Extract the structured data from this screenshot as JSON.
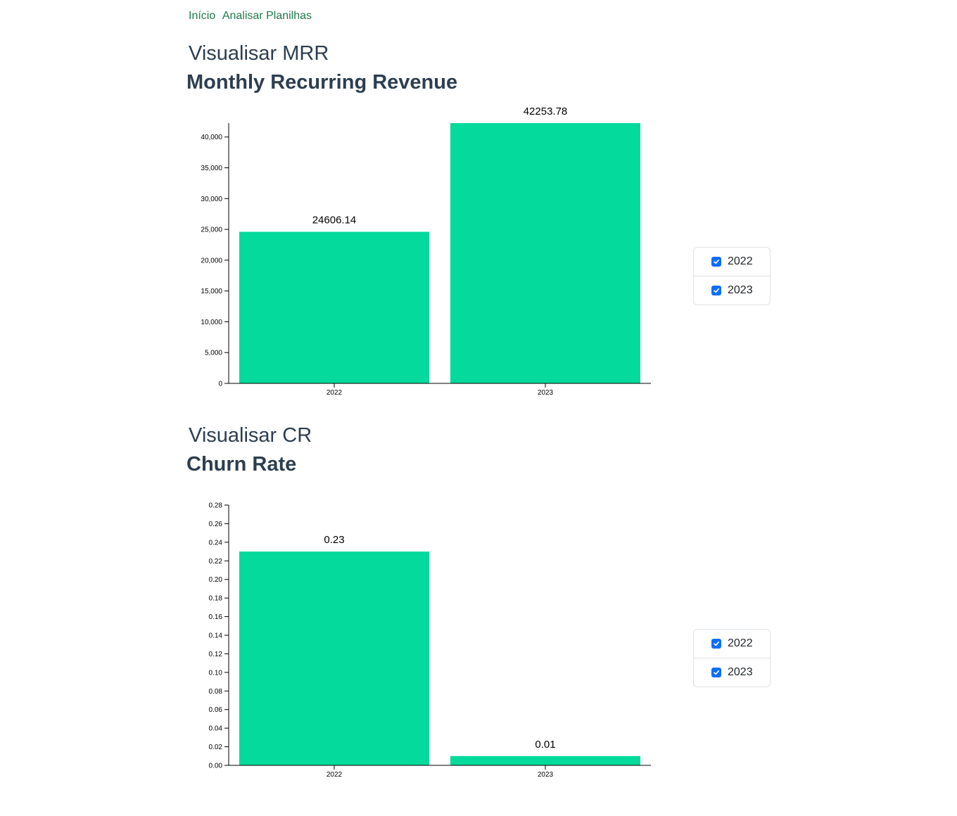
{
  "nav": {
    "home": "Início",
    "analyze": "Analisar Planilhas"
  },
  "colors": {
    "bar": "#03da9b",
    "checkbox": "#0d6efd",
    "nav": "#1f7a4c"
  },
  "sections": [
    {
      "heading": "Visualisar MRR",
      "title": "Monthly Recurring Revenue"
    },
    {
      "heading": "Visualisar CR",
      "title": "Churn Rate"
    }
  ],
  "legends": [
    {
      "items": [
        {
          "label": "2022",
          "checked": true
        },
        {
          "label": "2023",
          "checked": true
        }
      ]
    },
    {
      "items": [
        {
          "label": "2022",
          "checked": true
        },
        {
          "label": "2023",
          "checked": true
        }
      ]
    }
  ],
  "chart_data": [
    {
      "type": "bar",
      "title": "Monthly Recurring Revenue",
      "categories": [
        "2022",
        "2023"
      ],
      "values": [
        24606.14,
        42253.78
      ],
      "value_labels": [
        "24606.14",
        "42253.78"
      ],
      "ylim": [
        0,
        42253.78
      ],
      "yticks": [
        0,
        5000,
        10000,
        15000,
        20000,
        25000,
        30000,
        35000,
        40000
      ],
      "ytick_labels": [
        "0",
        "5,000",
        "10,000",
        "15,000",
        "20,000",
        "25,000",
        "30,000",
        "35,000",
        "40,000"
      ],
      "xlabel": "",
      "ylabel": "",
      "grid": false,
      "legend": "right"
    },
    {
      "type": "bar",
      "title": "Churn Rate",
      "categories": [
        "2022",
        "2023"
      ],
      "values": [
        0.23,
        0.01
      ],
      "value_labels": [
        "0.23",
        "0.01"
      ],
      "ylim": [
        0,
        0.28
      ],
      "yticks": [
        0,
        0.02,
        0.04,
        0.06,
        0.08,
        0.1,
        0.12,
        0.14,
        0.16,
        0.18,
        0.2,
        0.22,
        0.24,
        0.26,
        0.28
      ],
      "ytick_labels": [
        "0.00",
        "0.02",
        "0.04",
        "0.06",
        "0.08",
        "0.10",
        "0.12",
        "0.14",
        "0.16",
        "0.18",
        "0.20",
        "0.22",
        "0.24",
        "0.26",
        "0.28"
      ],
      "xlabel": "",
      "ylabel": "",
      "grid": false,
      "legend": "right"
    }
  ]
}
